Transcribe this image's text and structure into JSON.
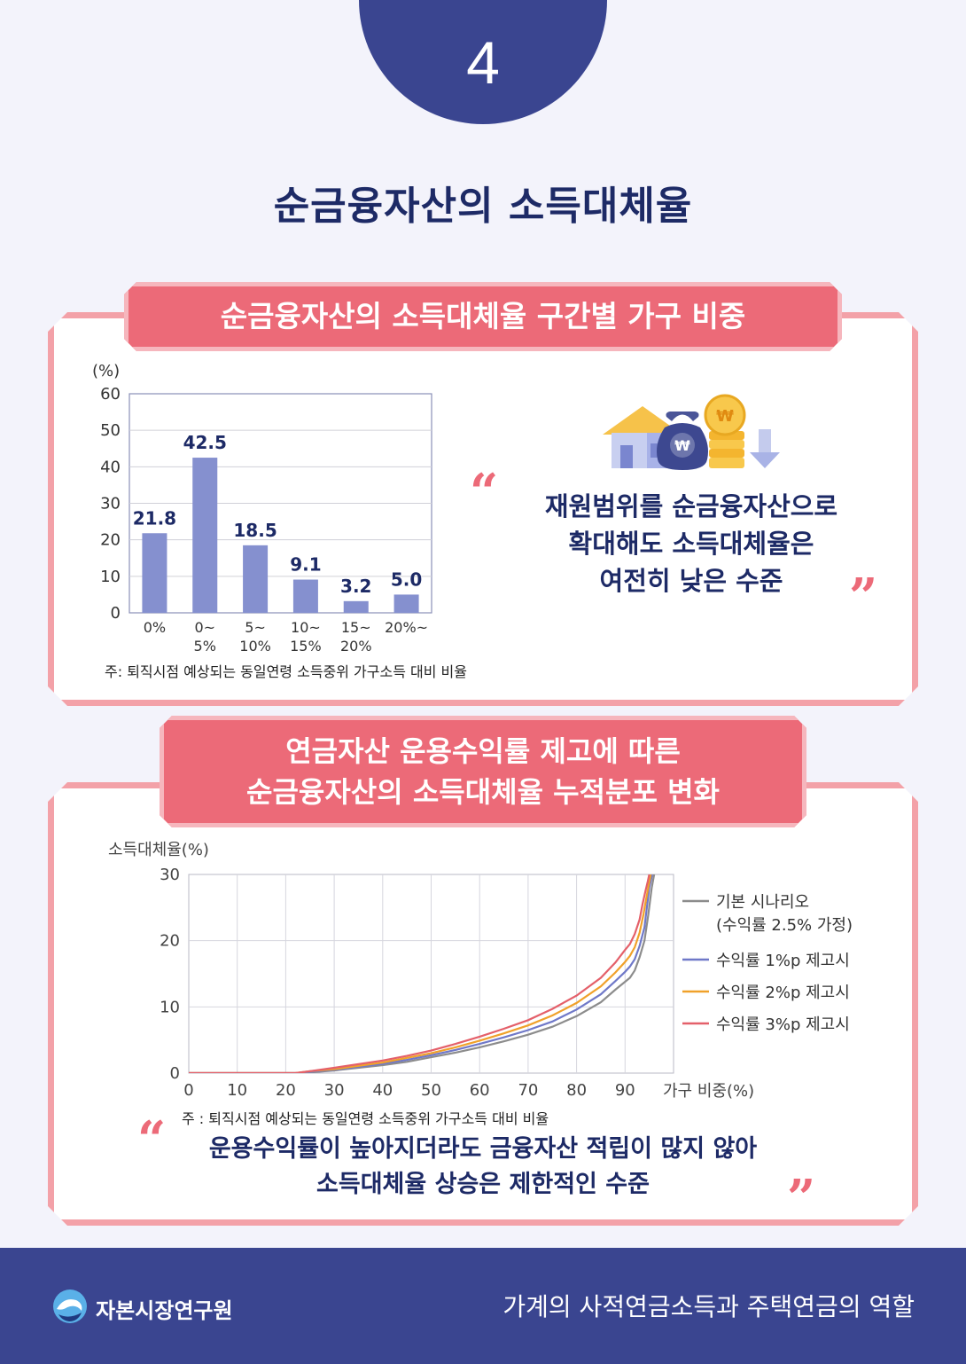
{
  "section_number": "4",
  "main_title": "순금융자산의 소득대체율",
  "section1": {
    "banner": "순금융자산의 소득대체율 구간별 가구 비중",
    "quote_lines": [
      "재원범위를 순금융자산으로",
      "확대해도 소득대체율은",
      "여전히 낮은 수준"
    ],
    "note": "주: 퇴직시점 예상되는 동일연령 소득중위 가구소득 대비 비율"
  },
  "section2": {
    "banner_lines": [
      "연금자산 운용수익률 제고에 따른",
      "순금융자산의 소득대체율 누적분포 변화"
    ],
    "quote_lines": [
      "운용수익률이 높아지더라도 금융자산 적립이 많지 않아",
      "소득대체율 상승은 제한적인 수준"
    ],
    "note": "주 : 퇴직시점 예상되는 동일연령 소득중위 가구소득 대비 비율"
  },
  "quote_open": "“",
  "quote_close": "”",
  "chart_data": [
    {
      "type": "bar",
      "ylabel": "(%)",
      "ylim": [
        0,
        60
      ],
      "yticks": [
        0,
        10,
        20,
        30,
        40,
        50,
        60
      ],
      "categories": [
        [
          "0%"
        ],
        [
          "0~",
          "5%"
        ],
        [
          "5~",
          "10%"
        ],
        [
          "10~",
          "15%"
        ],
        [
          "15~",
          "20%"
        ],
        [
          "20%~"
        ]
      ],
      "values": [
        21.8,
        42.5,
        18.5,
        9.1,
        3.2,
        5.0
      ],
      "value_labels": [
        "21.8",
        "42.5",
        "18.5",
        "9.1",
        "3.2",
        "5.0"
      ],
      "bar_color": "#8590cf",
      "grid": true
    },
    {
      "type": "line",
      "ylabel": "소득대체율(%)",
      "xlabel": "가구 비중(%)",
      "xlim": [
        0,
        100
      ],
      "ylim": [
        0,
        30
      ],
      "xticks": [
        0,
        10,
        20,
        30,
        40,
        50,
        60,
        70,
        80,
        90
      ],
      "yticks": [
        0,
        10,
        20,
        30
      ],
      "grid": true,
      "legend_position": "right",
      "series": [
        {
          "name": "기본 시나리오",
          "name_line2": "(수익률 2.5% 가정)",
          "color": "#8c8c8c",
          "x": [
            0,
            22,
            25,
            30,
            40,
            45,
            50,
            55,
            60,
            65,
            70,
            75,
            80,
            85,
            88,
            90,
            91,
            92,
            93,
            94,
            94.8,
            95.5,
            96
          ],
          "y": [
            0,
            0,
            0.1,
            0.4,
            1.2,
            1.7,
            2.4,
            3.1,
            3.9,
            4.8,
            5.8,
            7.0,
            8.6,
            10.7,
            12.6,
            13.8,
            14.4,
            15.5,
            17.5,
            20.0,
            24.0,
            28.0,
            30.0
          ]
        },
        {
          "name": "수익률 1%p 제고시",
          "color": "#6f78c8",
          "x": [
            0,
            22,
            25,
            30,
            40,
            45,
            50,
            55,
            60,
            65,
            70,
            75,
            80,
            85,
            88,
            90,
            91,
            92,
            93,
            94,
            94.5,
            95,
            95.6
          ],
          "y": [
            0,
            0,
            0.2,
            0.5,
            1.4,
            2.0,
            2.7,
            3.5,
            4.4,
            5.4,
            6.5,
            7.8,
            9.6,
            11.9,
            13.9,
            15.3,
            16.1,
            17.2,
            19.2,
            22.0,
            25.0,
            28.0,
            30.0
          ]
        },
        {
          "name": "수익률 2%p 제고시",
          "color": "#f0a12a",
          "x": [
            0,
            22,
            25,
            30,
            40,
            45,
            50,
            55,
            60,
            65,
            70,
            75,
            80,
            85,
            88,
            90,
            91,
            92,
            93,
            93.8,
            94.4,
            94.9,
            95.3
          ],
          "y": [
            0,
            0,
            0.3,
            0.6,
            1.6,
            2.3,
            3.0,
            3.9,
            4.9,
            6.0,
            7.2,
            8.7,
            10.6,
            13.1,
            15.2,
            16.8,
            17.7,
            19.0,
            21.2,
            24.0,
            26.5,
            28.5,
            30.0
          ]
        },
        {
          "name": "수익률 3%p 제고시",
          "color": "#e4606a",
          "x": [
            0,
            22,
            25,
            30,
            40,
            45,
            50,
            55,
            60,
            65,
            70,
            75,
            80,
            85,
            88,
            90,
            91,
            92,
            93,
            93.6,
            94.2,
            94.7,
            95.0
          ],
          "y": [
            0,
            0,
            0.3,
            0.8,
            1.9,
            2.6,
            3.4,
            4.4,
            5.5,
            6.7,
            8.0,
            9.7,
            11.7,
            14.4,
            16.7,
            18.6,
            19.5,
            21.0,
            23.2,
            25.5,
            27.5,
            29.0,
            30.0
          ]
        }
      ]
    }
  ],
  "footer": {
    "org": "자본시장연구원",
    "title": "가계의 사적연금소득과 주택연금의 역할"
  },
  "colors": {
    "navy": "#3a4590",
    "pink": "#ec6a78",
    "pink_light": "#f3a1a8"
  }
}
